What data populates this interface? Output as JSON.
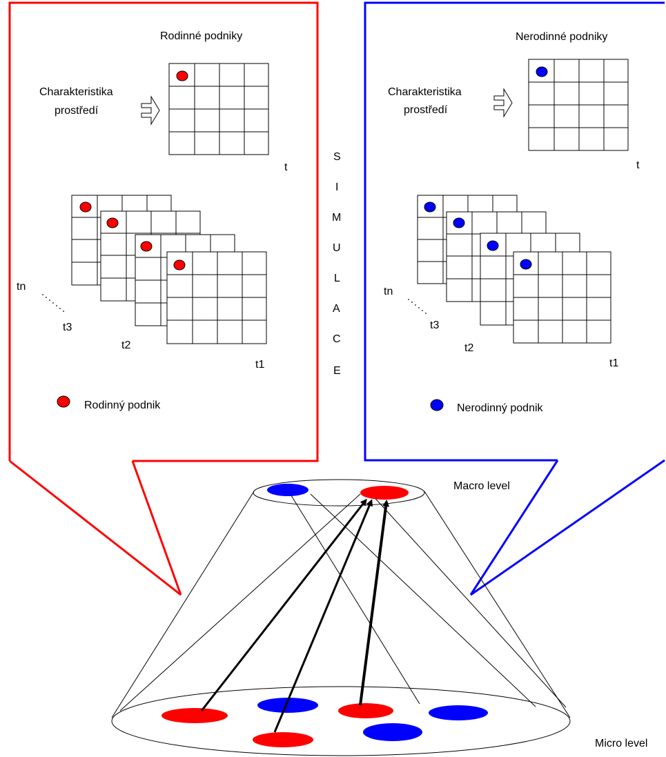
{
  "family_panel": {
    "title": "Rodinné podniky",
    "input_label_line1": "Charakteristika",
    "input_label_line2": "prostředí",
    "time_current": "t",
    "time_tn": "tn",
    "time_t3": "t3",
    "time_t2": "t2",
    "time_t1": "t1",
    "legend_label": "Rodinný podnik",
    "color": "#ff0000"
  },
  "nonfamily_panel": {
    "title": "Nerodinné podniky",
    "input_label_line1": "Charakteristika",
    "input_label_line2": "prostředí",
    "time_current": "t",
    "time_tn": "tn",
    "time_t3": "t3",
    "time_t2": "t2",
    "time_t1": "t1",
    "legend_label": "Nerodinný podnik",
    "color": "#0000ff"
  },
  "simulation_letters": [
    "S",
    "I",
    "M",
    "U",
    "L",
    "A",
    "C",
    "E"
  ],
  "levels": {
    "macro": "Macro level",
    "micro": "Micro level"
  }
}
